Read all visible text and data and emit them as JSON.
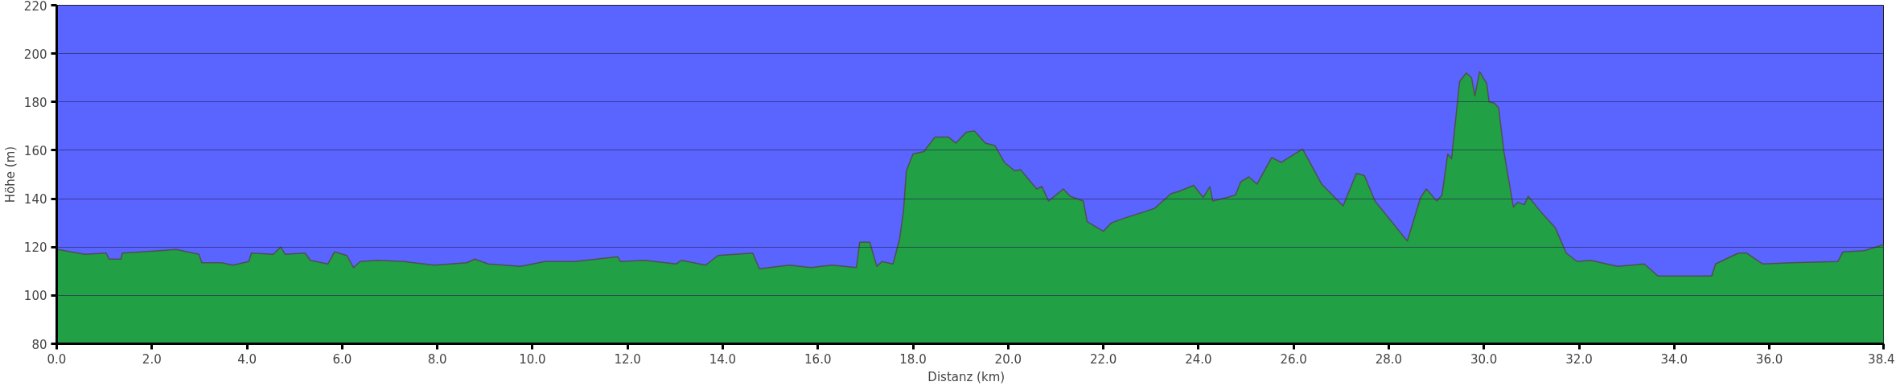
{
  "chart_data": {
    "type": "area",
    "xlabel": "Distanz   (km)",
    "ylabel": "Höhe (m)",
    "xlim": [
      0,
      38.4
    ],
    "ylim": [
      80,
      220
    ],
    "xticks": [
      {
        "value": 0,
        "label": "0.0"
      },
      {
        "value": 2,
        "label": "2.0"
      },
      {
        "value": 4,
        "label": "4.0"
      },
      {
        "value": 6,
        "label": "6.0"
      },
      {
        "value": 8,
        "label": "8.0"
      },
      {
        "value": 10,
        "label": "10.0"
      },
      {
        "value": 12,
        "label": "12.0"
      },
      {
        "value": 14,
        "label": "14.0"
      },
      {
        "value": 16,
        "label": "16.0"
      },
      {
        "value": 18,
        "label": "18.0"
      },
      {
        "value": 20,
        "label": "20.0"
      },
      {
        "value": 22,
        "label": "22.0"
      },
      {
        "value": 24,
        "label": "24.0"
      },
      {
        "value": 26,
        "label": "26.0"
      },
      {
        "value": 28,
        "label": "28.0"
      },
      {
        "value": 30,
        "label": "30.0"
      },
      {
        "value": 32,
        "label": "32.0"
      },
      {
        "value": 34,
        "label": "34.0"
      },
      {
        "value": 36,
        "label": "36.0"
      },
      {
        "value": 38.4,
        "label": "38.4"
      }
    ],
    "yticks": [
      80,
      100,
      120,
      140,
      160,
      180,
      200,
      220
    ],
    "grid": "y",
    "series": [
      {
        "color": "#22a046",
        "x": [
          0.02,
          0.59,
          1.04,
          1.1,
          1.35,
          1.38,
          2.17,
          2.51,
          2.99,
          3.05,
          3.47,
          3.7,
          4.04,
          4.09,
          4.55,
          4.71,
          4.8,
          5.22,
          5.33,
          5.7,
          5.84,
          6.1,
          6.24,
          6.38,
          6.75,
          7.31,
          7.94,
          8.62,
          8.79,
          9.07,
          9.75,
          10.26,
          10.89,
          11.79,
          11.85,
          12.36,
          13.02,
          13.13,
          13.64,
          13.9,
          14.63,
          14.77,
          15.4,
          15.85,
          16.3,
          16.81,
          16.88,
          17.09,
          17.24,
          17.35,
          17.58,
          17.72,
          17.8,
          17.86,
          18.0,
          18.23,
          18.46,
          18.74,
          18.9,
          19.12,
          19.29,
          19.52,
          19.72,
          19.92,
          20.14,
          20.26,
          20.6,
          20.71,
          20.85,
          21.16,
          21.3,
          21.58,
          21.66,
          22.0,
          22.17,
          22.45,
          22.85,
          23.08,
          23.42,
          23.59,
          23.9,
          24.1,
          24.24,
          24.3,
          24.61,
          24.78,
          24.89,
          25.06,
          25.23,
          25.54,
          25.74,
          26.19,
          26.59,
          27.04,
          27.32,
          27.49,
          27.71,
          28.39,
          28.67,
          28.79,
          29.01,
          29.12,
          29.24,
          29.32,
          29.49,
          29.63,
          29.74,
          29.81,
          29.91,
          30.06,
          30.11,
          30.22,
          30.31,
          30.42,
          30.62,
          30.71,
          30.85,
          30.93,
          31.22,
          31.5,
          31.73,
          31.96,
          32.24,
          32.81,
          33.37,
          33.66,
          34.79,
          34.87,
          35.35,
          35.52,
          35.86,
          36.48,
          37.44,
          37.55,
          38.0,
          38.4
        ],
        "values": [
          119,
          117,
          117.5,
          115,
          115,
          117.5,
          118.5,
          119,
          117,
          113.5,
          113.5,
          112.5,
          114,
          117.5,
          117,
          120,
          117,
          117.5,
          114.5,
          113,
          118,
          116.5,
          111.5,
          114,
          114.5,
          114,
          112.5,
          113.5,
          115,
          113,
          112,
          114,
          114,
          116,
          114,
          114.5,
          113,
          114.5,
          112.5,
          116.5,
          117.5,
          111,
          112.5,
          111.5,
          112.5,
          111.5,
          122,
          122,
          112,
          114,
          113,
          123.5,
          135,
          151.5,
          158.5,
          159.5,
          165.5,
          165.5,
          163,
          167.5,
          168,
          163,
          162,
          155,
          151.5,
          152,
          144,
          145,
          139,
          144,
          141,
          139,
          130.5,
          126.5,
          130,
          132,
          134.5,
          136,
          142,
          143,
          145.5,
          140.5,
          145,
          139,
          140.5,
          141.5,
          147,
          149,
          146,
          157,
          155,
          160.5,
          146,
          137,
          150.5,
          149.5,
          139,
          122.5,
          140.5,
          144,
          139,
          141.5,
          158.5,
          156.5,
          188.5,
          192,
          190,
          182.5,
          192.5,
          187.5,
          180,
          179.5,
          177.5,
          159.5,
          136.5,
          138.5,
          137.5,
          141,
          134,
          128,
          117.5,
          114,
          114.5,
          112,
          113,
          108,
          108,
          113,
          117.5,
          117.5,
          113,
          113.5,
          114,
          118,
          118.5,
          121
        ]
      }
    ]
  }
}
